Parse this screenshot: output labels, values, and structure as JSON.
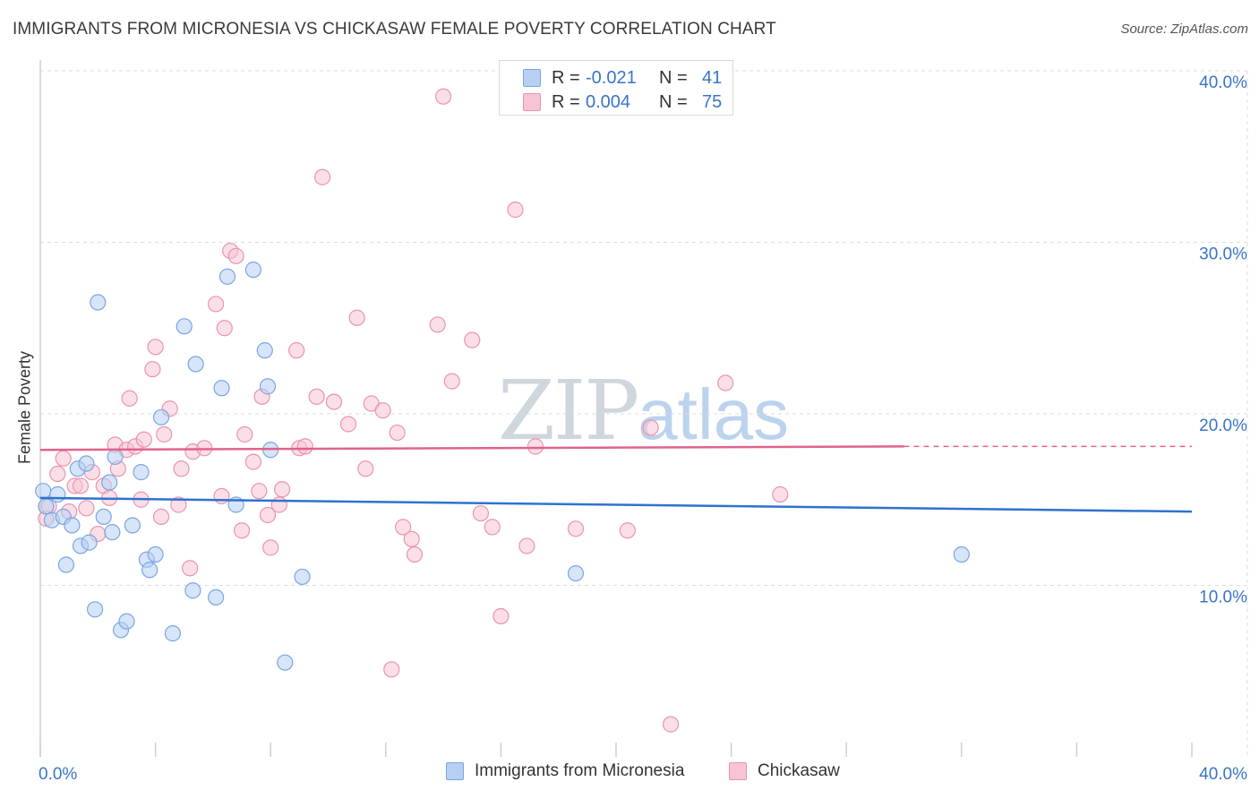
{
  "title": "IMMIGRANTS FROM MICRONESIA VS CHICKASAW FEMALE POVERTY CORRELATION CHART",
  "source": "Source: ZipAtlas.com",
  "watermark": {
    "zip": "ZIP",
    "atlas": "atlas"
  },
  "legend_top": {
    "rows": [
      {
        "r_label": "R =",
        "r_value": "-0.021",
        "n_label": "N =",
        "n_value": "41"
      },
      {
        "r_label": "R =",
        "r_value": "0.004",
        "n_label": "N =",
        "n_value": "75"
      }
    ]
  },
  "legend_bottom": [
    "Immigrants from Micronesia",
    "Chickasaw"
  ],
  "colors": {
    "blue_fill": "#b7d0f2",
    "blue_stroke": "#7aa5e3",
    "blue_line": "#2f72cf",
    "pink_fill": "#f7c4d4",
    "pink_stroke": "#eb93b0",
    "pink_line": "#e0638a",
    "grid": "#dcdcdc",
    "tick_label": "#3a74c9"
  },
  "chart_data": {
    "type": "scatter",
    "title": "IMMIGRANTS FROM MICRONESIA VS CHICKASAW FEMALE POVERTY CORRELATION CHART",
    "xlabel": "",
    "ylabel": "Female Poverty",
    "xlim": [
      0,
      40
    ],
    "ylim": [
      0,
      40
    ],
    "x_tick_labels": [
      "0.0%",
      "40.0%"
    ],
    "y_ticks": [
      10,
      20,
      30,
      40
    ],
    "y_tick_labels": [
      "10.0%",
      "20.0%",
      "30.0%",
      "40.0%"
    ],
    "grid": true,
    "legend": "bottom-center",
    "series": [
      {
        "name": "Immigrants from Micronesia",
        "color": "#7aa5e3",
        "trend": {
          "x": [
            0,
            40
          ],
          "y": [
            15.1,
            14.3
          ]
        },
        "points": [
          [
            0.1,
            15.5
          ],
          [
            0.2,
            14.6
          ],
          [
            0.4,
            13.8
          ],
          [
            0.6,
            15.3
          ],
          [
            0.8,
            14.0
          ],
          [
            0.9,
            11.2
          ],
          [
            1.1,
            13.5
          ],
          [
            1.3,
            16.8
          ],
          [
            1.4,
            12.3
          ],
          [
            1.6,
            17.1
          ],
          [
            1.7,
            12.5
          ],
          [
            1.9,
            8.6
          ],
          [
            2.0,
            26.5
          ],
          [
            2.2,
            14.0
          ],
          [
            2.4,
            16.0
          ],
          [
            2.5,
            13.1
          ],
          [
            2.6,
            17.5
          ],
          [
            2.8,
            7.4
          ],
          [
            3.0,
            7.9
          ],
          [
            3.2,
            13.5
          ],
          [
            3.5,
            16.6
          ],
          [
            3.7,
            11.5
          ],
          [
            3.8,
            10.9
          ],
          [
            4.0,
            11.8
          ],
          [
            4.2,
            19.8
          ],
          [
            4.6,
            7.2
          ],
          [
            5.0,
            25.1
          ],
          [
            5.4,
            22.9
          ],
          [
            5.3,
            9.7
          ],
          [
            6.1,
            9.3
          ],
          [
            6.3,
            21.5
          ],
          [
            6.5,
            28.0
          ],
          [
            6.8,
            14.7
          ],
          [
            7.4,
            28.4
          ],
          [
            7.8,
            23.7
          ],
          [
            7.9,
            21.6
          ],
          [
            8.0,
            17.9
          ],
          [
            8.5,
            5.5
          ],
          [
            9.1,
            10.5
          ],
          [
            18.6,
            10.7
          ],
          [
            32.0,
            11.8
          ]
        ]
      },
      {
        "name": "Chickasaw",
        "color": "#eb93b0",
        "trend": {
          "x": [
            0,
            30
          ],
          "y": [
            17.9,
            18.1
          ]
        },
        "trend_dashed": {
          "x": [
            30,
            40
          ],
          "y": [
            18.1,
            18.1
          ]
        },
        "points": [
          [
            0.2,
            13.9
          ],
          [
            0.3,
            14.6
          ],
          [
            0.6,
            16.5
          ],
          [
            0.8,
            17.4
          ],
          [
            1.0,
            14.3
          ],
          [
            1.2,
            15.8
          ],
          [
            1.4,
            15.8
          ],
          [
            1.6,
            14.5
          ],
          [
            1.8,
            16.6
          ],
          [
            2.0,
            13.0
          ],
          [
            2.2,
            15.8
          ],
          [
            2.4,
            15.1
          ],
          [
            2.6,
            18.2
          ],
          [
            2.7,
            16.8
          ],
          [
            3.0,
            17.9
          ],
          [
            3.1,
            20.9
          ],
          [
            3.3,
            18.1
          ],
          [
            3.5,
            15.0
          ],
          [
            3.6,
            18.5
          ],
          [
            3.9,
            22.6
          ],
          [
            4.0,
            23.9
          ],
          [
            4.2,
            14.0
          ],
          [
            4.3,
            18.8
          ],
          [
            4.5,
            20.3
          ],
          [
            4.8,
            14.7
          ],
          [
            4.9,
            16.8
          ],
          [
            5.2,
            11.0
          ],
          [
            5.3,
            17.8
          ],
          [
            5.7,
            18.0
          ],
          [
            6.1,
            26.4
          ],
          [
            6.3,
            15.2
          ],
          [
            6.4,
            25.0
          ],
          [
            6.6,
            29.5
          ],
          [
            6.8,
            29.2
          ],
          [
            7.0,
            13.2
          ],
          [
            7.1,
            18.8
          ],
          [
            7.4,
            17.2
          ],
          [
            7.6,
            15.5
          ],
          [
            7.7,
            21.0
          ],
          [
            7.9,
            14.1
          ],
          [
            8.0,
            12.2
          ],
          [
            8.3,
            14.7
          ],
          [
            8.4,
            15.6
          ],
          [
            8.9,
            23.7
          ],
          [
            9.0,
            18.0
          ],
          [
            9.2,
            18.1
          ],
          [
            9.6,
            21.0
          ],
          [
            9.8,
            33.8
          ],
          [
            10.2,
            20.7
          ],
          [
            10.7,
            19.4
          ],
          [
            11.0,
            25.6
          ],
          [
            11.3,
            16.8
          ],
          [
            11.5,
            20.6
          ],
          [
            11.9,
            20.2
          ],
          [
            12.2,
            5.1
          ],
          [
            12.4,
            18.9
          ],
          [
            12.6,
            13.4
          ],
          [
            12.9,
            12.7
          ],
          [
            13.0,
            11.8
          ],
          [
            13.8,
            25.2
          ],
          [
            14.0,
            38.5
          ],
          [
            14.3,
            21.9
          ],
          [
            15.0,
            24.3
          ],
          [
            15.3,
            14.2
          ],
          [
            15.7,
            13.4
          ],
          [
            16.0,
            8.2
          ],
          [
            16.5,
            31.9
          ],
          [
            16.9,
            12.3
          ],
          [
            17.2,
            18.1
          ],
          [
            18.6,
            13.3
          ],
          [
            20.4,
            13.2
          ],
          [
            21.2,
            19.2
          ],
          [
            21.9,
            1.9
          ],
          [
            23.8,
            21.8
          ],
          [
            25.7,
            15.3
          ]
        ]
      }
    ]
  }
}
